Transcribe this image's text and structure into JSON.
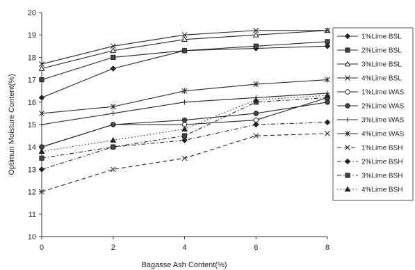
{
  "chart_data": {
    "type": "line",
    "xlabel": "Bagasse Ash Content(%)",
    "ylabel": "Optimun Moisture Content(%)",
    "xlim": [
      0,
      8
    ],
    "ylim": [
      10,
      20
    ],
    "xticks": [
      "0",
      "2",
      "4",
      "6",
      "8"
    ],
    "yticks": [
      "10",
      "11",
      "12",
      "13",
      "14",
      "15",
      "16",
      "17",
      "18",
      "19",
      "20"
    ],
    "grid": false,
    "legend_position": "right",
    "x": [
      0,
      2,
      4,
      6,
      8
    ],
    "series": [
      {
        "name": "1%Lime BSL",
        "values": [
          16.2,
          17.5,
          18.3,
          18.4,
          18.5
        ],
        "marker": "diamond",
        "dash": "solid"
      },
      {
        "name": "2%Lime BSL",
        "values": [
          17.0,
          18.0,
          18.3,
          18.5,
          18.7
        ],
        "marker": "square",
        "dash": "solid"
      },
      {
        "name": "3%Lime BSL",
        "values": [
          17.5,
          18.3,
          18.8,
          19.0,
          19.2
        ],
        "marker": "triangle-open",
        "dash": "solid"
      },
      {
        "name": "4%Lime BSL",
        "values": [
          17.7,
          18.5,
          19.0,
          19.2,
          19.2
        ],
        "marker": "x",
        "dash": "solid"
      },
      {
        "name": "1%Lime WAS",
        "values": [
          14.0,
          15.0,
          15.0,
          15.2,
          16.2
        ],
        "marker": "circle-open",
        "dash": "solid"
      },
      {
        "name": "2%Lime WAS",
        "values": [
          14.0,
          15.0,
          15.2,
          15.5,
          16.0
        ],
        "marker": "circle",
        "dash": "solid"
      },
      {
        "name": "3%Lime WAS",
        "values": [
          15.0,
          15.5,
          16.0,
          16.2,
          16.4
        ],
        "marker": "plus",
        "dash": "solid"
      },
      {
        "name": "4%Lime WAS",
        "values": [
          15.5,
          15.8,
          16.5,
          16.8,
          17.0
        ],
        "marker": "star",
        "dash": "solid"
      },
      {
        "name": "1%Lime BSH",
        "values": [
          12.0,
          13.0,
          13.5,
          14.5,
          14.6
        ],
        "marker": "x",
        "dash": "dashed"
      },
      {
        "name": "2%Lime BSH",
        "values": [
          13.0,
          14.0,
          14.3,
          15.0,
          15.1
        ],
        "marker": "diamond",
        "dash": "dashdot"
      },
      {
        "name": "3%Lime BSH",
        "values": [
          13.5,
          14.0,
          14.5,
          16.0,
          16.2
        ],
        "marker": "square",
        "dash": "dashdot"
      },
      {
        "name": "4%Lime BSH",
        "values": [
          13.8,
          14.3,
          14.8,
          16.1,
          16.3
        ],
        "marker": "triangle",
        "dash": "dotted"
      }
    ]
  }
}
